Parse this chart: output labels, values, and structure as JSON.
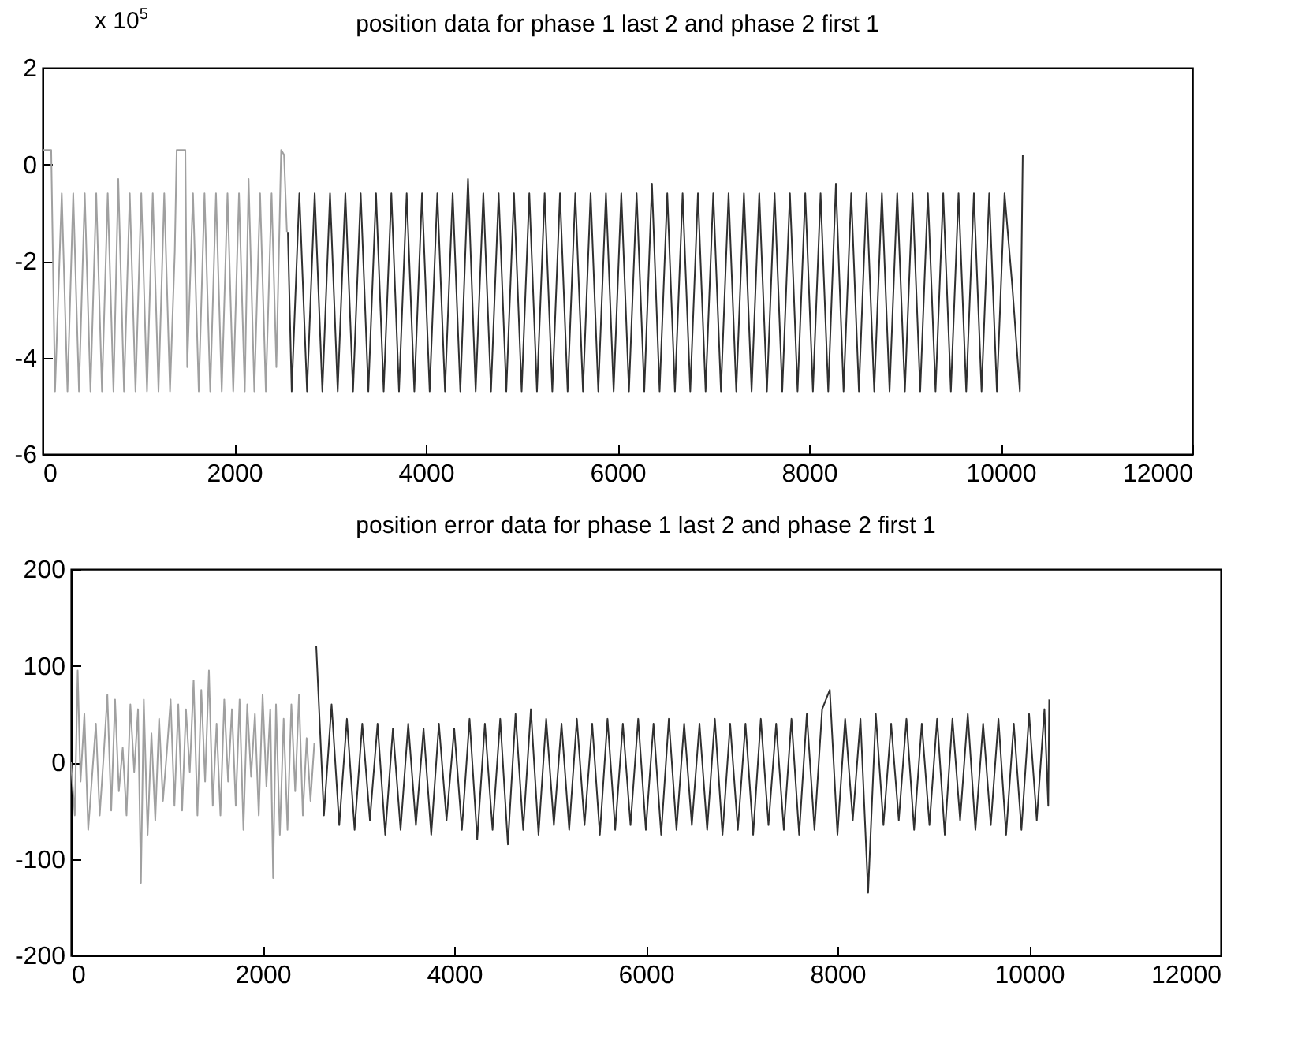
{
  "chart_data": [
    {
      "type": "line",
      "title": "position data for phase 1 last 2 and phase 2 first 1",
      "annotations": [
        "x 10$^{5}$"
      ],
      "xlim": [
        0,
        12000
      ],
      "xticks": [
        0,
        2000,
        4000,
        6000,
        8000,
        10000,
        12000
      ],
      "ylim": [
        -6,
        2
      ],
      "yticks": [
        -6,
        -4,
        -2,
        0,
        2
      ],
      "series": [
        {
          "color": "#a0a0a0",
          "x": [
            0,
            90,
            130,
            200,
            260,
            320,
            380,
            440,
            500,
            560,
            620,
            680,
            740,
            790,
            850,
            910,
            970,
            1030,
            1090,
            1150,
            1210,
            1270,
            1330,
            1380,
            1400,
            1490,
            1510,
            1570,
            1630,
            1690,
            1750,
            1810,
            1870,
            1930,
            1990,
            2050,
            2110,
            2150,
            2210,
            2270,
            2330,
            2390,
            2440,
            2490,
            2520,
            2550
          ],
          "values": [
            0.3,
            0.3,
            -4.7,
            -0.6,
            -4.7,
            -0.6,
            -4.7,
            -0.6,
            -4.7,
            -0.6,
            -4.7,
            -0.6,
            -4.7,
            -0.3,
            -4.7,
            -0.6,
            -4.7,
            -0.6,
            -4.7,
            -0.6,
            -4.7,
            -0.6,
            -4.7,
            -1.8,
            0.3,
            0.3,
            -4.2,
            -0.6,
            -4.7,
            -0.6,
            -4.7,
            -0.6,
            -4.7,
            -0.6,
            -4.7,
            -0.6,
            -4.7,
            -0.3,
            -4.7,
            -0.6,
            -4.7,
            -0.6,
            -4.2,
            0.3,
            0.2,
            -1.4
          ]
        },
        {
          "color": "#303030",
          "x": [
            2560,
            2600,
            2680,
            2760,
            2840,
            2920,
            3000,
            3080,
            3160,
            3240,
            3320,
            3400,
            3480,
            3560,
            3640,
            3720,
            3800,
            3880,
            3960,
            4040,
            4120,
            4200,
            4280,
            4360,
            4440,
            4520,
            4600,
            4680,
            4760,
            4840,
            4920,
            5000,
            5080,
            5160,
            5240,
            5320,
            5400,
            5480,
            5560,
            5640,
            5720,
            5800,
            5880,
            5960,
            6040,
            6120,
            6200,
            6280,
            6360,
            6440,
            6520,
            6600,
            6680,
            6760,
            6840,
            6920,
            7000,
            7080,
            7160,
            7240,
            7320,
            7400,
            7480,
            7560,
            7640,
            7720,
            7800,
            7880,
            7960,
            8040,
            8120,
            8200,
            8280,
            8360,
            8440,
            8520,
            8600,
            8680,
            8760,
            8840,
            8920,
            9000,
            9080,
            9160,
            9240,
            9320,
            9400,
            9480,
            9560,
            9640,
            9720,
            9800,
            9880,
            9960,
            10040,
            10120,
            10200,
            10230
          ],
          "values": [
            -1.4,
            -4.7,
            -0.6,
            -4.7,
            -0.6,
            -4.7,
            -0.6,
            -4.7,
            -0.6,
            -4.7,
            -0.6,
            -4.7,
            -0.6,
            -4.7,
            -0.6,
            -4.7,
            -0.6,
            -4.7,
            -0.6,
            -4.7,
            -0.6,
            -4.7,
            -0.6,
            -4.7,
            -0.3,
            -4.7,
            -0.6,
            -4.7,
            -0.6,
            -4.7,
            -0.6,
            -4.7,
            -0.6,
            -4.7,
            -0.6,
            -4.7,
            -0.6,
            -4.7,
            -0.6,
            -4.7,
            -0.6,
            -4.7,
            -0.6,
            -4.7,
            -0.6,
            -4.7,
            -0.6,
            -4.7,
            -0.4,
            -4.7,
            -0.6,
            -4.7,
            -0.6,
            -4.7,
            -0.6,
            -4.7,
            -0.6,
            -4.7,
            -0.6,
            -4.7,
            -0.6,
            -4.7,
            -0.6,
            -4.7,
            -0.6,
            -4.7,
            -0.6,
            -4.7,
            -0.6,
            -4.7,
            -0.6,
            -4.7,
            -0.4,
            -4.7,
            -0.6,
            -4.7,
            -0.6,
            -4.7,
            -0.6,
            -4.7,
            -0.6,
            -4.7,
            -0.6,
            -4.7,
            -0.6,
            -4.7,
            -0.6,
            -4.7,
            -0.6,
            -4.7,
            -0.6,
            -4.7,
            -0.6,
            -4.7,
            -0.6,
            -2.5,
            -4.7,
            0.2
          ]
        }
      ]
    },
    {
      "type": "line",
      "title": "position error data for phase 1 last 2 and phase 2 first 1",
      "xlim": [
        0,
        12000
      ],
      "xticks": [
        0,
        2000,
        4000,
        6000,
        8000,
        10000,
        12000
      ],
      "ylim": [
        -200,
        200
      ],
      "yticks": [
        -200,
        -100,
        0,
        100,
        200
      ],
      "series": [
        {
          "color": "#a0a0a0",
          "x": [
            0,
            40,
            70,
            100,
            140,
            180,
            220,
            260,
            300,
            340,
            380,
            420,
            460,
            500,
            540,
            580,
            620,
            660,
            700,
            730,
            760,
            800,
            840,
            880,
            920,
            960,
            1000,
            1040,
            1080,
            1120,
            1160,
            1200,
            1240,
            1280,
            1320,
            1360,
            1400,
            1440,
            1480,
            1520,
            1560,
            1600,
            1640,
            1680,
            1720,
            1760,
            1800,
            1840,
            1880,
            1920,
            1960,
            2000,
            2040,
            2080,
            2110,
            2140,
            2180,
            2220,
            2260,
            2300,
            2340,
            2380,
            2420,
            2460,
            2500,
            2540
          ],
          "values": [
            0,
            -55,
            95,
            -20,
            50,
            -70,
            -15,
            40,
            -55,
            5,
            70,
            -50,
            65,
            -30,
            15,
            -55,
            60,
            -10,
            55,
            -125,
            65,
            -75,
            30,
            -60,
            45,
            -40,
            10,
            65,
            -45,
            60,
            -50,
            55,
            -10,
            85,
            -55,
            75,
            -20,
            95,
            -45,
            40,
            -55,
            65,
            -20,
            55,
            -45,
            65,
            -70,
            60,
            -15,
            50,
            -55,
            70,
            -25,
            55,
            -120,
            60,
            -75,
            45,
            -70,
            60,
            -30,
            70,
            -55,
            25,
            -40,
            20
          ]
        },
        {
          "color": "#303030",
          "x": [
            2560,
            2640,
            2720,
            2800,
            2880,
            2960,
            3040,
            3120,
            3200,
            3280,
            3360,
            3440,
            3520,
            3600,
            3680,
            3760,
            3840,
            3920,
            4000,
            4080,
            4160,
            4240,
            4320,
            4400,
            4480,
            4560,
            4640,
            4720,
            4800,
            4880,
            4960,
            5040,
            5120,
            5200,
            5280,
            5360,
            5440,
            5520,
            5600,
            5680,
            5760,
            5840,
            5920,
            6000,
            6080,
            6160,
            6240,
            6320,
            6400,
            6480,
            6560,
            6640,
            6720,
            6800,
            6880,
            6960,
            7040,
            7120,
            7200,
            7280,
            7360,
            7440,
            7520,
            7600,
            7680,
            7760,
            7840,
            7920,
            8000,
            8080,
            8160,
            8240,
            8320,
            8400,
            8480,
            8560,
            8640,
            8720,
            8800,
            8880,
            8960,
            9040,
            9120,
            9200,
            9280,
            9360,
            9440,
            9520,
            9600,
            9680,
            9760,
            9840,
            9920,
            10000,
            10080,
            10160,
            10200,
            10210
          ],
          "values": [
            120,
            -55,
            60,
            -65,
            45,
            -70,
            40,
            -60,
            40,
            -75,
            35,
            -70,
            40,
            -65,
            35,
            -75,
            40,
            -60,
            35,
            -70,
            45,
            -80,
            40,
            -70,
            45,
            -85,
            50,
            -70,
            55,
            -75,
            45,
            -65,
            40,
            -70,
            45,
            -65,
            40,
            -75,
            45,
            -70,
            40,
            -65,
            45,
            -70,
            40,
            -75,
            45,
            -70,
            40,
            -65,
            40,
            -70,
            45,
            -75,
            40,
            -70,
            40,
            -75,
            45,
            -65,
            40,
            -70,
            45,
            -75,
            50,
            -70,
            55,
            75,
            -75,
            45,
            -60,
            45,
            -135,
            50,
            -65,
            40,
            -60,
            45,
            -70,
            40,
            -65,
            45,
            -75,
            45,
            -60,
            50,
            -70,
            40,
            -65,
            45,
            -75,
            40,
            -70,
            50,
            -60,
            55,
            -45,
            65
          ]
        }
      ]
    }
  ]
}
